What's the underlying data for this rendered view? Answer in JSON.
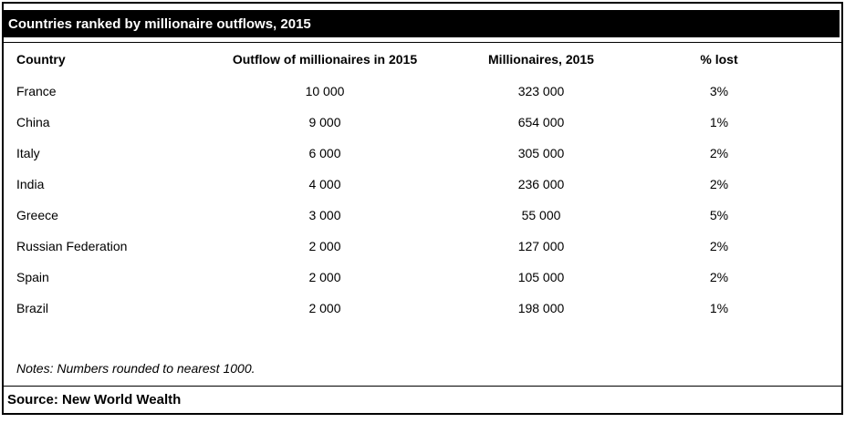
{
  "title": "Countries ranked by millionaire outflows, 2015",
  "table": {
    "columns": [
      "Country",
      "Outflow of millionaires in 2015",
      "Millionaires, 2015",
      "% lost"
    ],
    "rows": [
      {
        "country": "France",
        "outflow": "10 000",
        "millionaires": "323 000",
        "pct_lost": "3%"
      },
      {
        "country": "China",
        "outflow": "9 000",
        "millionaires": "654 000",
        "pct_lost": "1%"
      },
      {
        "country": "Italy",
        "outflow": "6 000",
        "millionaires": "305 000",
        "pct_lost": "2%"
      },
      {
        "country": "India",
        "outflow": "4 000",
        "millionaires": "236 000",
        "pct_lost": "2%"
      },
      {
        "country": "Greece",
        "outflow": "3 000",
        "millionaires": "55 000",
        "pct_lost": "5%"
      },
      {
        "country": "Russian Federation",
        "outflow": "2 000",
        "millionaires": "127 000",
        "pct_lost": "2%"
      },
      {
        "country": "Spain",
        "outflow": "2 000",
        "millionaires": "105 000",
        "pct_lost": "2%"
      },
      {
        "country": "Brazil",
        "outflow": "2 000",
        "millionaires": "198 000",
        "pct_lost": "1%"
      }
    ]
  },
  "notes": "Notes: Numbers rounded to nearest 1000.",
  "source": "Source: New World Wealth",
  "colors": {
    "title_bg": "#000000",
    "title_text": "#ffffff",
    "border": "#000000",
    "background": "#ffffff",
    "text": "#000000"
  },
  "chart_data": {
    "type": "table",
    "title": "Countries ranked by millionaire outflows, 2015",
    "columns": [
      "Country",
      "Outflow of millionaires in 2015",
      "Millionaires, 2015",
      "% lost"
    ],
    "rows": [
      [
        "France",
        10000,
        323000,
        "3%"
      ],
      [
        "China",
        9000,
        654000,
        "1%"
      ],
      [
        "Italy",
        6000,
        305000,
        "2%"
      ],
      [
        "India",
        4000,
        236000,
        "2%"
      ],
      [
        "Greece",
        3000,
        55000,
        "5%"
      ],
      [
        "Russian Federation",
        2000,
        127000,
        "2%"
      ],
      [
        "Spain",
        2000,
        105000,
        "2%"
      ],
      [
        "Brazil",
        2000,
        198000,
        "1%"
      ]
    ],
    "notes": "Notes: Numbers rounded to nearest 1000.",
    "source": "Source: New World Wealth",
    "layout": {
      "grid": false,
      "row_separators": false,
      "number_format": "space thousands separator"
    }
  }
}
